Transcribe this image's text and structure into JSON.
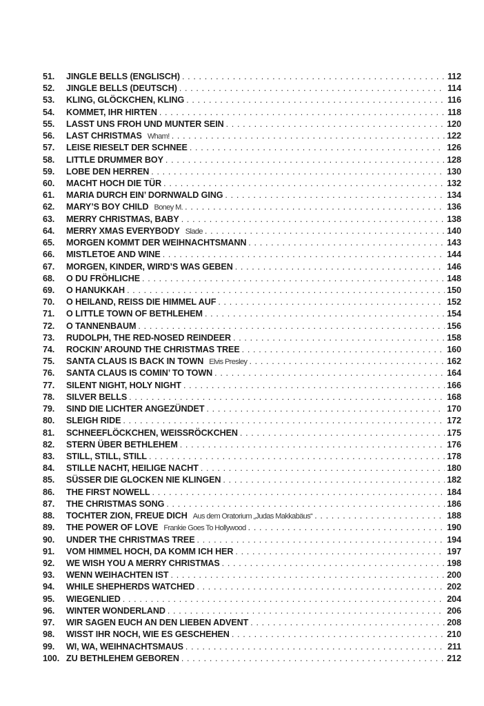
{
  "toc": [
    {
      "num": "51.",
      "title": "JINGLE BELLS (ENGLISCH)",
      "page": "112"
    },
    {
      "num": "52.",
      "title": "JINGLE BELLS (DEUTSCH)",
      "page": "114"
    },
    {
      "num": "53.",
      "title": "KLING, GLÖCKCHEN, KLING",
      "page": "116"
    },
    {
      "num": "54.",
      "title": "KOMMET, IHR HIRTEN",
      "page": "118"
    },
    {
      "num": "55.",
      "title": "LASST UNS FROH UND MUNTER SEIN",
      "page": "120"
    },
    {
      "num": "56.",
      "title": "LAST CHRISTMAS",
      "artist": "Wham!",
      "page": "122"
    },
    {
      "num": "57.",
      "title": "LEISE RIESELT DER SCHNEE",
      "page": "126"
    },
    {
      "num": "58.",
      "title": "LITTLE DRUMMER BOY",
      "page": "128"
    },
    {
      "num": "59.",
      "title": "LOBE DEN HERREN",
      "page": "130"
    },
    {
      "num": "60.",
      "title": "MACHT HOCH DIE TÜR",
      "page": "132"
    },
    {
      "num": "61.",
      "title": "MARIA DURCH EIN’ DORNWALD GING",
      "page": "134"
    },
    {
      "num": "62.",
      "title": "MARY’S BOY CHILD",
      "artist": "Boney M.",
      "page": "136"
    },
    {
      "num": "63.",
      "title": "MERRY CHRISTMAS, BABY",
      "page": "138"
    },
    {
      "num": "64.",
      "title": "MERRY XMAS EVERYBODY",
      "artist": "Slade",
      "page": "140"
    },
    {
      "num": "65.",
      "title": "MORGEN KOMMT DER WEIHNACHTSMANN",
      "page": "143"
    },
    {
      "num": "66.",
      "title": "MISTLETOE AND WINE",
      "page": "144"
    },
    {
      "num": "67.",
      "title": "MORGEN, KINDER, WIRD’S WAS GEBEN",
      "page": "146"
    },
    {
      "num": "68.",
      "title": "O DU FRÖHLICHE",
      "page": "148"
    },
    {
      "num": "69.",
      "title": "O HANUKKAH",
      "page": "150"
    },
    {
      "num": "70.",
      "title": "O HEILAND, REISS DIE HIMMEL AUF",
      "page": "152"
    },
    {
      "num": "71.",
      "title": "O LITTLE TOWN OF BETHLEHEM",
      "page": "154"
    },
    {
      "num": "72.",
      "title": "O TANNENBAUM",
      "page": "156"
    },
    {
      "num": "73.",
      "title": "RUDOLPH, THE RED-NOSED REINDEER",
      "page": "158"
    },
    {
      "num": "74.",
      "title": "ROCKIN’ AROUND THE CHRISTMAS TREE",
      "page": "160"
    },
    {
      "num": "75.",
      "title": "SANTA CLAUS IS BACK IN TOWN",
      "artist": "Elvis Presley",
      "page": "162"
    },
    {
      "num": "76.",
      "title": "SANTA CLAUS IS COMIN’ TO TOWN",
      "page": "164"
    },
    {
      "num": "77.",
      "title": "SILENT NIGHT, HOLY NIGHT",
      "page": "166"
    },
    {
      "num": "78.",
      "title": "SILVER BELLS",
      "page": "168"
    },
    {
      "num": "79.",
      "title": "SIND DIE LICHTER ANGEZÜNDET",
      "page": "170"
    },
    {
      "num": "80.",
      "title": "SLEIGH RIDE",
      "page": "172"
    },
    {
      "num": "81.",
      "title": "SCHNEEFLÖCKCHEN, WEISSRÖCKCHEN",
      "page": "175"
    },
    {
      "num": "82.",
      "title": "STERN ÜBER BETHLEHEM",
      "page": "176"
    },
    {
      "num": "83.",
      "title": "STILL, STILL, STILL",
      "page": "178"
    },
    {
      "num": "84.",
      "title": "STILLE NACHT, HEILIGE NACHT",
      "page": "180"
    },
    {
      "num": "85.",
      "title": "SÜSSER DIE GLOCKEN NIE KLINGEN",
      "page": "182"
    },
    {
      "num": "86.",
      "title": "THE FIRST NOWELL",
      "page": "184"
    },
    {
      "num": "87.",
      "title": "THE CHRISTMAS SONG",
      "page": "186"
    },
    {
      "num": "88.",
      "title": "TOCHTER ZION, FREUE DICH",
      "artist": "Aus dem Oratorium „Judas Makkabäus“",
      "page": "188"
    },
    {
      "num": "89.",
      "title": "THE POWER OF LOVE",
      "artist": "Frankie Goes To Hollywood",
      "page": "190"
    },
    {
      "num": "90.",
      "title": "UNDER THE CHRISTMAS TREE",
      "page": "194"
    },
    {
      "num": "91.",
      "title": "VOM HIMMEL HOCH, DA KOMM ICH HER",
      "page": "197"
    },
    {
      "num": "92.",
      "title": "WE WISH YOU A MERRY CHRISTMAS",
      "page": "198"
    },
    {
      "num": "93.",
      "title": "WENN WEIHACHTEN IST",
      "page": "200"
    },
    {
      "num": "94.",
      "title": "WHILE SHEPHERDS WATCHED",
      "page": "202"
    },
    {
      "num": "95.",
      "title": "WIEGENLIED",
      "page": "204"
    },
    {
      "num": "96.",
      "title": "WINTER WONDERLAND",
      "page": "206"
    },
    {
      "num": "97.",
      "title": "WIR SAGEN EUCH AN DEN LIEBEN ADVENT",
      "page": "208"
    },
    {
      "num": "98.",
      "title": "WISST IHR NOCH, WIE ES GESCHEHEN",
      "page": "210"
    },
    {
      "num": "99.",
      "title": "WI, WA, WEIHNACHTSMAUS",
      "page": "211"
    },
    {
      "num": "100.",
      "title": "ZU BETHLEHEM GEBOREN",
      "page": "212"
    }
  ]
}
